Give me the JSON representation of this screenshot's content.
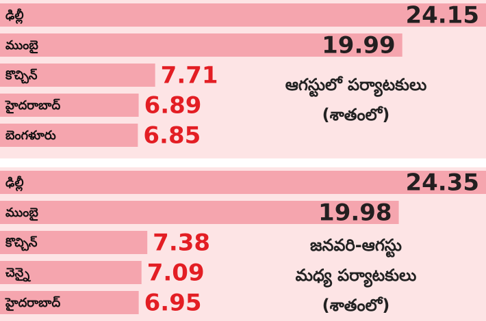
{
  "chart_data": [
    {
      "type": "bar",
      "orientation": "horizontal",
      "categories": [
        "ఢిల్లీ",
        "ముంబై",
        "కొచ్చిన్",
        "హైదరాబాద్",
        "బెంగళూరు"
      ],
      "values": [
        24.15,
        19.99,
        7.71,
        6.89,
        6.85
      ],
      "color": "#f5a5ae",
      "background": "#fde4e5",
      "value_color": "#e31e24",
      "annotations": [
        "ఆగస్టులో పర్యాటకులు",
        "(శాతంలో)"
      ]
    },
    {
      "type": "bar",
      "orientation": "horizontal",
      "categories": [
        "ఢిల్లీ",
        "ముంబై",
        "కొచ్చిన్",
        "చెన్నై",
        "హైదరాబాద్"
      ],
      "values": [
        24.35,
        19.98,
        7.38,
        7.09,
        6.95
      ],
      "color": "#f5a5ae",
      "background": "#fde4e5",
      "value_color": "#e31e24",
      "annotations": [
        "జనవరి-ఆగస్టు",
        "మధ్య పర్యాటకులు",
        "(శాతంలో)"
      ]
    }
  ]
}
